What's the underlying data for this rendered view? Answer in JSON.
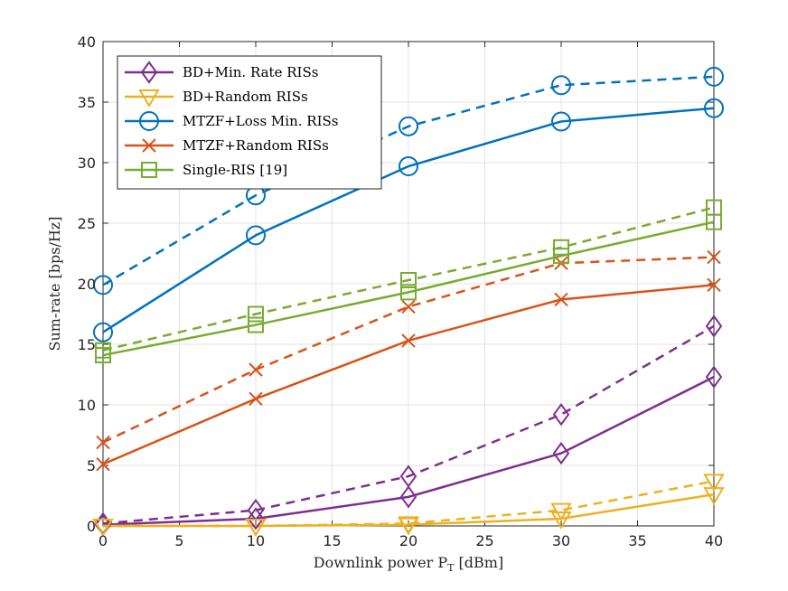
{
  "chart_data": {
    "type": "line",
    "xlabel": "Downlink power P",
    "xlabel_sub": "T",
    "xlabel_unit": " [dBm]",
    "ylabel": "Sum-rate [bps/Hz]",
    "xlim": [
      0,
      40
    ],
    "ylim": [
      0,
      40
    ],
    "xticks": [
      0,
      5,
      10,
      15,
      20,
      25,
      30,
      35,
      40
    ],
    "yticks": [
      0,
      5,
      10,
      15,
      20,
      25,
      30,
      35,
      40
    ],
    "grid": true,
    "legend_position": "top-left",
    "x": [
      0,
      10,
      20,
      30,
      40
    ],
    "series": [
      {
        "name": "BD+Min. Rate RISs",
        "color": "#7E2F8E",
        "marker": "diamond",
        "solid": [
          0.1,
          0.6,
          2.4,
          6.0,
          12.3
        ],
        "dashed": [
          0.2,
          1.3,
          4.1,
          9.2,
          16.5
        ]
      },
      {
        "name": "BD+Random RISs",
        "color": "#EDB120",
        "marker": "triangle-down",
        "solid": [
          0.0,
          0.0,
          0.1,
          0.6,
          2.6
        ],
        "dashed": [
          0.0,
          0.0,
          0.2,
          1.3,
          3.7
        ]
      },
      {
        "name": "MTZF+Loss Min. RISs",
        "color": "#0072BD",
        "marker": "circle",
        "solid": [
          16.0,
          24.0,
          29.7,
          33.4,
          34.5
        ],
        "dashed": [
          19.9,
          27.3,
          33.0,
          36.4,
          37.1
        ]
      },
      {
        "name": "MTZF+Random RISs",
        "color": "#D95319",
        "marker": "x",
        "solid": [
          5.1,
          10.5,
          15.3,
          18.7,
          19.9
        ],
        "dashed": [
          6.9,
          12.9,
          18.1,
          21.7,
          22.2
        ]
      },
      {
        "name": "Single-RIS [19]",
        "color": "#77AC30",
        "marker": "square",
        "solid": [
          14.1,
          16.6,
          19.3,
          22.3,
          25.1
        ],
        "dashed": [
          14.5,
          17.5,
          20.3,
          23.0,
          26.3
        ]
      }
    ]
  }
}
